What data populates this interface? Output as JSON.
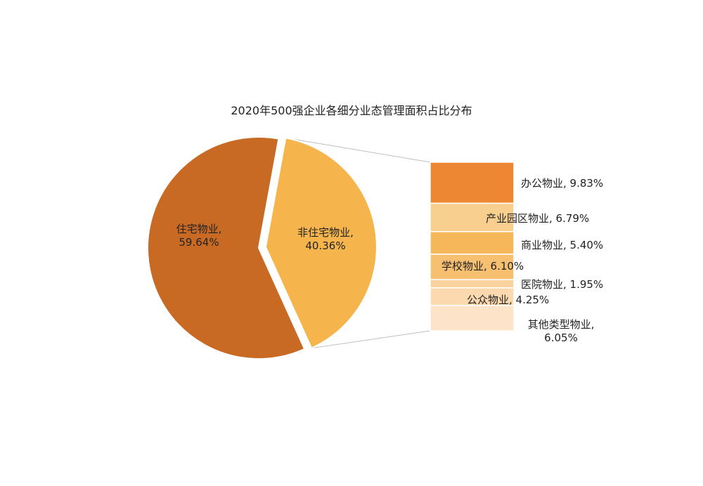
{
  "chart_data": {
    "type": "bar-of-pie",
    "title": "2020年500强企业各细分业态管理面积占比分布",
    "pie": {
      "slices": [
        {
          "name": "住宅物业",
          "value": 59.64,
          "label": "59.64%",
          "color": "#C86A23"
        },
        {
          "name": "非住宅物业",
          "value": 40.36,
          "label": "40.36%",
          "color": "#F5B54C"
        }
      ]
    },
    "bar": {
      "segments": [
        {
          "name": "办公物业",
          "value": 9.83,
          "label": "9.83%",
          "color": "#EE8733"
        },
        {
          "name": "产业园区物业",
          "value": 6.79,
          "label": "6.79%",
          "color": "#F9CF8F"
        },
        {
          "name": "商业物业",
          "value": 5.4,
          "label": "5.40%",
          "color": "#F5B759"
        },
        {
          "name": "学校物业",
          "value": 6.1,
          "label": "6.10%",
          "color": "#F7C071"
        },
        {
          "name": "医院物业",
          "value": 1.95,
          "label": "1.95%",
          "color": "#FAD29E"
        },
        {
          "name": "公众物业",
          "value": 4.25,
          "label": "4.25%",
          "color": "#FCD9AE"
        },
        {
          "name": "其他类型物业",
          "value": 6.05,
          "label": "6.05%",
          "color": "#FDE3C8"
        }
      ]
    },
    "connector_color": "#BFBFBF"
  }
}
